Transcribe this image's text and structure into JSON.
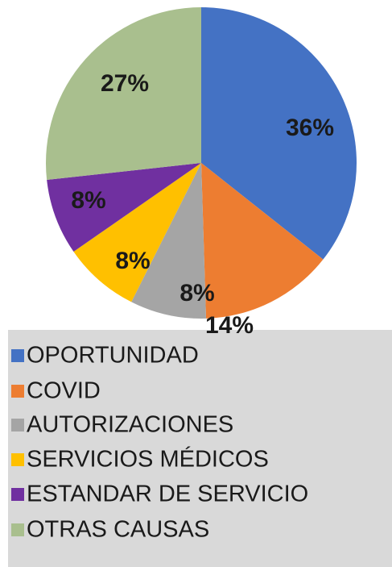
{
  "chart_data": {
    "type": "pie",
    "categories": [
      "OPORTUNIDAD",
      "COVID",
      "AUTORIZACIONES",
      "SERVICIOS MÉDICOS",
      "ESTANDAR DE SERVICIO",
      "OTRAS CAUSAS"
    ],
    "values": [
      36,
      14,
      8,
      8,
      8,
      27
    ],
    "value_labels": [
      "36%",
      "14%",
      "8%",
      "8%",
      "8%",
      "27%"
    ],
    "colors": [
      "#4472c4",
      "#ed7d31",
      "#a5a5a5",
      "#ffc000",
      "#7030a0",
      "#a9bf8e"
    ],
    "legend": "bottom"
  }
}
